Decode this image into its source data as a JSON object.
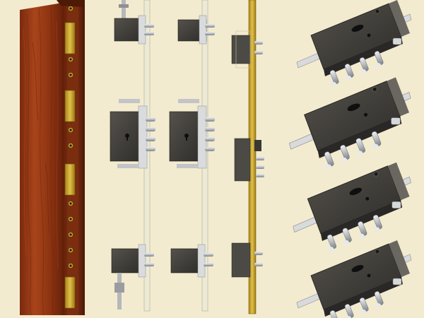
{
  "scene": {
    "background_color": "#f3ebcf",
    "door_wood_color": "#9a3a14",
    "brass_color": "#c9a431",
    "lock_body_color": "#3c3a36",
    "bolt_color": "#c8ccd0"
  },
  "objects": {
    "door_edge": "door-edge-with-brass-hinges",
    "multipoint_strip_1": "multipoint-lock-strip",
    "multipoint_strip_2": "multipoint-lock-strip",
    "brass_strip": "brass-multipoint-strip",
    "lock_cases": [
      "lock-case-1",
      "lock-case-2",
      "lock-case-3",
      "lock-case-4"
    ]
  }
}
